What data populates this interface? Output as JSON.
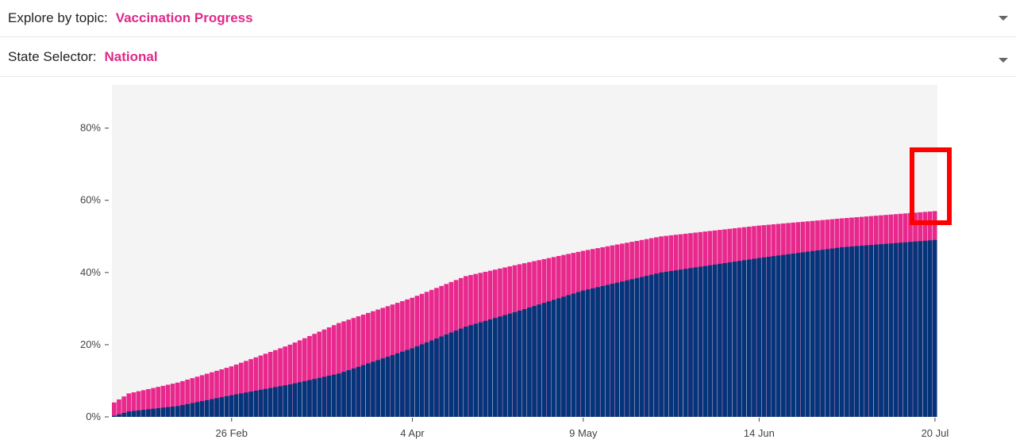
{
  "topic_selector": {
    "label": "Explore by topic:",
    "value": "Vaccination Progress"
  },
  "state_selector": {
    "label": "State Selector:",
    "value": "National"
  },
  "colors": {
    "accent": "#e0298a",
    "dose1": "#e8288c",
    "dose2": "#04347a",
    "plot_bg": "#f4f4f4",
    "highlight": "#ff0000"
  },
  "chart_data": {
    "type": "bar",
    "stacked": true,
    "x_start": "2021-02-02",
    "x_end": "2021-07-20",
    "xticks": [
      "26 Feb",
      "4 Apr",
      "9 May",
      "14 Jun",
      "20 Jul"
    ],
    "ylim": [
      0,
      0.92
    ],
    "yticks": [
      "0%",
      "20%",
      "40%",
      "60%",
      "80%"
    ],
    "grid": false,
    "series": [
      {
        "color": "#04347a",
        "anchors": [
          [
            "2021-02-02",
            0.003
          ],
          [
            "2021-02-05",
            0.015
          ],
          [
            "2021-02-15",
            0.03
          ],
          [
            "2021-02-26",
            0.06
          ],
          [
            "2021-03-10",
            0.09
          ],
          [
            "2021-03-20",
            0.12
          ],
          [
            "2021-04-04",
            0.19
          ],
          [
            "2021-04-15",
            0.25
          ],
          [
            "2021-04-25",
            0.29
          ],
          [
            "2021-05-09",
            0.35
          ],
          [
            "2021-05-25",
            0.4
          ],
          [
            "2021-06-14",
            0.44
          ],
          [
            "2021-07-01",
            0.47
          ],
          [
            "2021-07-20",
            0.49
          ]
        ]
      },
      {
        "color": "#e8288c",
        "anchors": [
          [
            "2021-02-02",
            0.04
          ],
          [
            "2021-02-05",
            0.065
          ],
          [
            "2021-02-15",
            0.095
          ],
          [
            "2021-02-26",
            0.14
          ],
          [
            "2021-03-10",
            0.2
          ],
          [
            "2021-03-20",
            0.26
          ],
          [
            "2021-04-04",
            0.33
          ],
          [
            "2021-04-15",
            0.39
          ],
          [
            "2021-04-25",
            0.42
          ],
          [
            "2021-05-09",
            0.46
          ],
          [
            "2021-05-25",
            0.5
          ],
          [
            "2021-06-14",
            0.53
          ],
          [
            "2021-07-01",
            0.55
          ],
          [
            "2021-07-20",
            0.57
          ]
        ]
      }
    ]
  }
}
